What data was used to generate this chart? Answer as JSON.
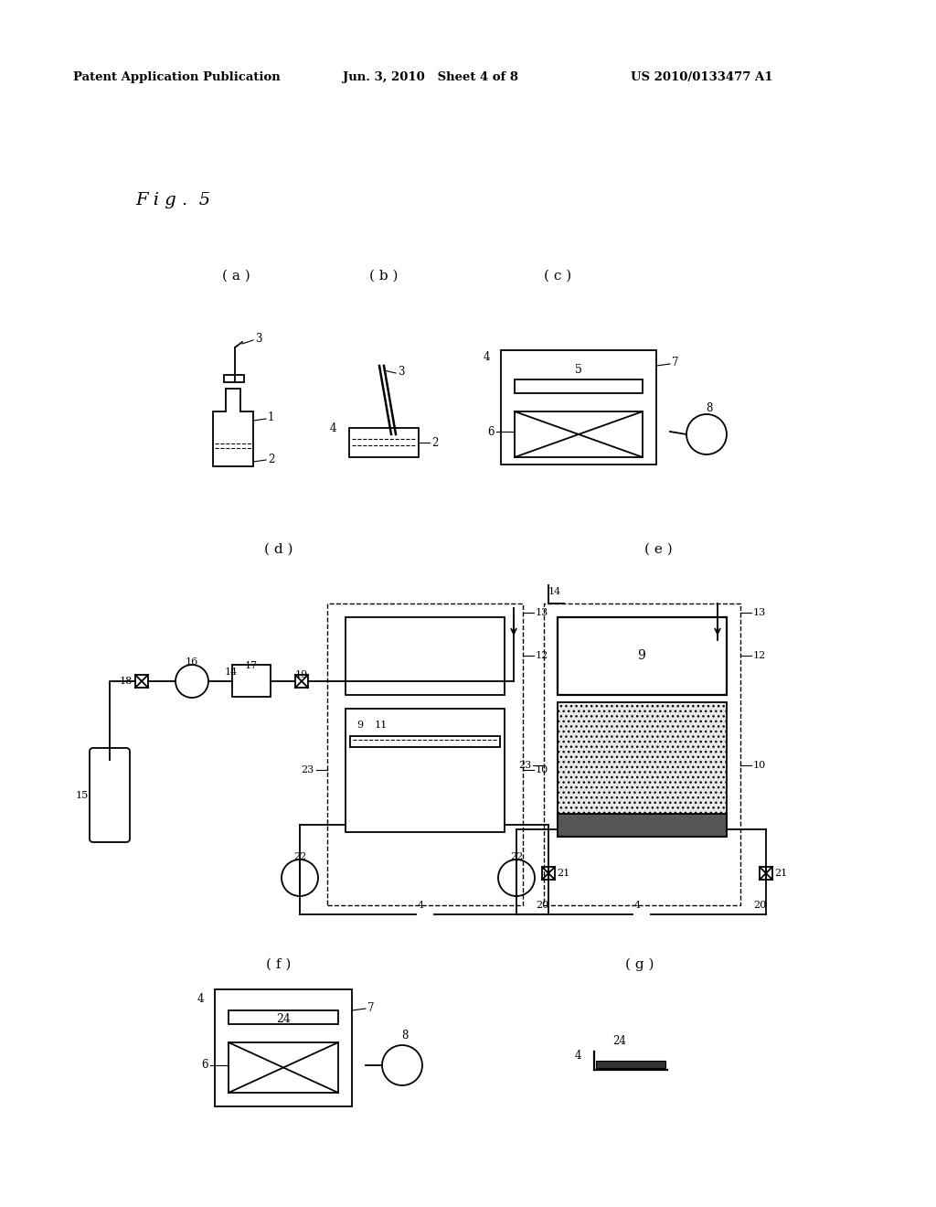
{
  "bg_color": "#ffffff",
  "text_color": "#000000",
  "header_left": "Patent Application Publication",
  "header_mid": "Jun. 3, 2010   Sheet 4 of 8",
  "header_right": "US 2010/0133477 A1",
  "fig_label": "F i g .  5"
}
